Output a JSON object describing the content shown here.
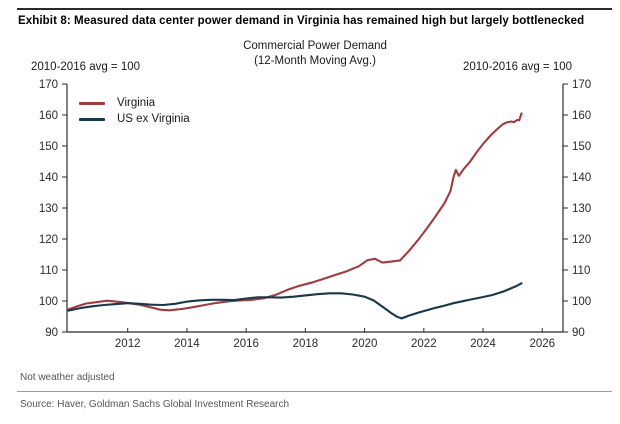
{
  "exhibit": {
    "title": "Exhibit 8: Measured data center power demand in Virginia has remained high but largely bottlenecked",
    "footnote": "Not weather adjusted",
    "source": "Source:  Haver, Goldman Sachs Global Investment Research"
  },
  "chart_data": {
    "type": "line",
    "title": "Commercial Power Demand",
    "subtitle": "(12-Month Moving Avg.)",
    "left_axis_label": "2010-2016 avg = 100",
    "right_axis_label": "2010-2016 avg = 100",
    "xlim": [
      2009.95,
      2026.7
    ],
    "ylim": [
      90,
      170
    ],
    "x_ticks": [
      2012,
      2014,
      2016,
      2018,
      2020,
      2022,
      2024,
      2026
    ],
    "y_ticks": [
      90,
      100,
      110,
      120,
      130,
      140,
      150,
      160,
      170
    ],
    "grid": false,
    "legend_position": "top-left",
    "axis_color": "#2b2b2b",
    "tick_label_color": "#2b2b2b",
    "series": [
      {
        "name": "Virginia",
        "color": "#a03c40",
        "points": [
          [
            2010.0,
            97.3
          ],
          [
            2010.3,
            98.3
          ],
          [
            2010.6,
            99.2
          ],
          [
            2011.0,
            99.7
          ],
          [
            2011.3,
            100.1
          ],
          [
            2011.6,
            99.8
          ],
          [
            2012.0,
            99.4
          ],
          [
            2012.4,
            98.8
          ],
          [
            2012.8,
            97.9
          ],
          [
            2013.1,
            97.2
          ],
          [
            2013.4,
            97.0
          ],
          [
            2013.8,
            97.4
          ],
          [
            2014.2,
            98.0
          ],
          [
            2014.6,
            98.7
          ],
          [
            2015.0,
            99.4
          ],
          [
            2015.4,
            99.9
          ],
          [
            2015.8,
            100.2
          ],
          [
            2016.2,
            100.4
          ],
          [
            2016.6,
            100.9
          ],
          [
            2017.0,
            102.0
          ],
          [
            2017.4,
            103.6
          ],
          [
            2017.8,
            104.9
          ],
          [
            2018.2,
            105.9
          ],
          [
            2018.6,
            107.1
          ],
          [
            2019.0,
            108.4
          ],
          [
            2019.4,
            109.6
          ],
          [
            2019.8,
            111.2
          ],
          [
            2020.1,
            113.2
          ],
          [
            2020.35,
            113.6
          ],
          [
            2020.6,
            112.4
          ],
          [
            2020.9,
            112.7
          ],
          [
            2021.2,
            113.1
          ],
          [
            2021.5,
            116.2
          ],
          [
            2021.8,
            119.6
          ],
          [
            2022.1,
            123.4
          ],
          [
            2022.4,
            127.4
          ],
          [
            2022.7,
            131.6
          ],
          [
            2022.9,
            135.5
          ],
          [
            2023.0,
            139.8
          ],
          [
            2023.08,
            142.3
          ],
          [
            2023.18,
            140.4
          ],
          [
            2023.35,
            142.6
          ],
          [
            2023.55,
            144.8
          ],
          [
            2023.8,
            148.2
          ],
          [
            2024.0,
            150.6
          ],
          [
            2024.25,
            153.4
          ],
          [
            2024.45,
            155.2
          ],
          [
            2024.65,
            156.9
          ],
          [
            2024.8,
            157.6
          ],
          [
            2024.95,
            157.9
          ],
          [
            2025.05,
            157.7
          ],
          [
            2025.15,
            158.4
          ],
          [
            2025.22,
            158.3
          ],
          [
            2025.3,
            160.5
          ]
        ]
      },
      {
        "name": "US ex Virginia",
        "color": "#17384a",
        "points": [
          [
            2010.0,
            96.9
          ],
          [
            2010.4,
            97.7
          ],
          [
            2010.8,
            98.3
          ],
          [
            2011.2,
            98.7
          ],
          [
            2011.6,
            99.0
          ],
          [
            2012.0,
            99.3
          ],
          [
            2012.4,
            99.1
          ],
          [
            2012.8,
            98.8
          ],
          [
            2013.2,
            98.7
          ],
          [
            2013.6,
            99.1
          ],
          [
            2014.0,
            99.8
          ],
          [
            2014.4,
            100.2
          ],
          [
            2014.8,
            100.4
          ],
          [
            2015.2,
            100.4
          ],
          [
            2015.6,
            100.3
          ],
          [
            2016.0,
            100.8
          ],
          [
            2016.4,
            101.2
          ],
          [
            2016.8,
            101.2
          ],
          [
            2017.2,
            101.1
          ],
          [
            2017.6,
            101.4
          ],
          [
            2018.0,
            101.8
          ],
          [
            2018.4,
            102.2
          ],
          [
            2018.8,
            102.5
          ],
          [
            2019.2,
            102.5
          ],
          [
            2019.6,
            102.1
          ],
          [
            2020.0,
            101.4
          ],
          [
            2020.3,
            100.2
          ],
          [
            2020.6,
            98.2
          ],
          [
            2020.9,
            96.1
          ],
          [
            2021.1,
            94.9
          ],
          [
            2021.25,
            94.4
          ],
          [
            2021.5,
            95.3
          ],
          [
            2021.8,
            96.2
          ],
          [
            2022.1,
            97.0
          ],
          [
            2022.4,
            97.8
          ],
          [
            2022.7,
            98.5
          ],
          [
            2023.0,
            99.3
          ],
          [
            2023.3,
            99.9
          ],
          [
            2023.6,
            100.5
          ],
          [
            2023.9,
            101.1
          ],
          [
            2024.1,
            101.5
          ],
          [
            2024.3,
            101.9
          ],
          [
            2024.5,
            102.5
          ],
          [
            2024.7,
            103.1
          ],
          [
            2024.9,
            103.9
          ],
          [
            2025.1,
            104.7
          ],
          [
            2025.3,
            105.7
          ]
        ]
      }
    ]
  }
}
